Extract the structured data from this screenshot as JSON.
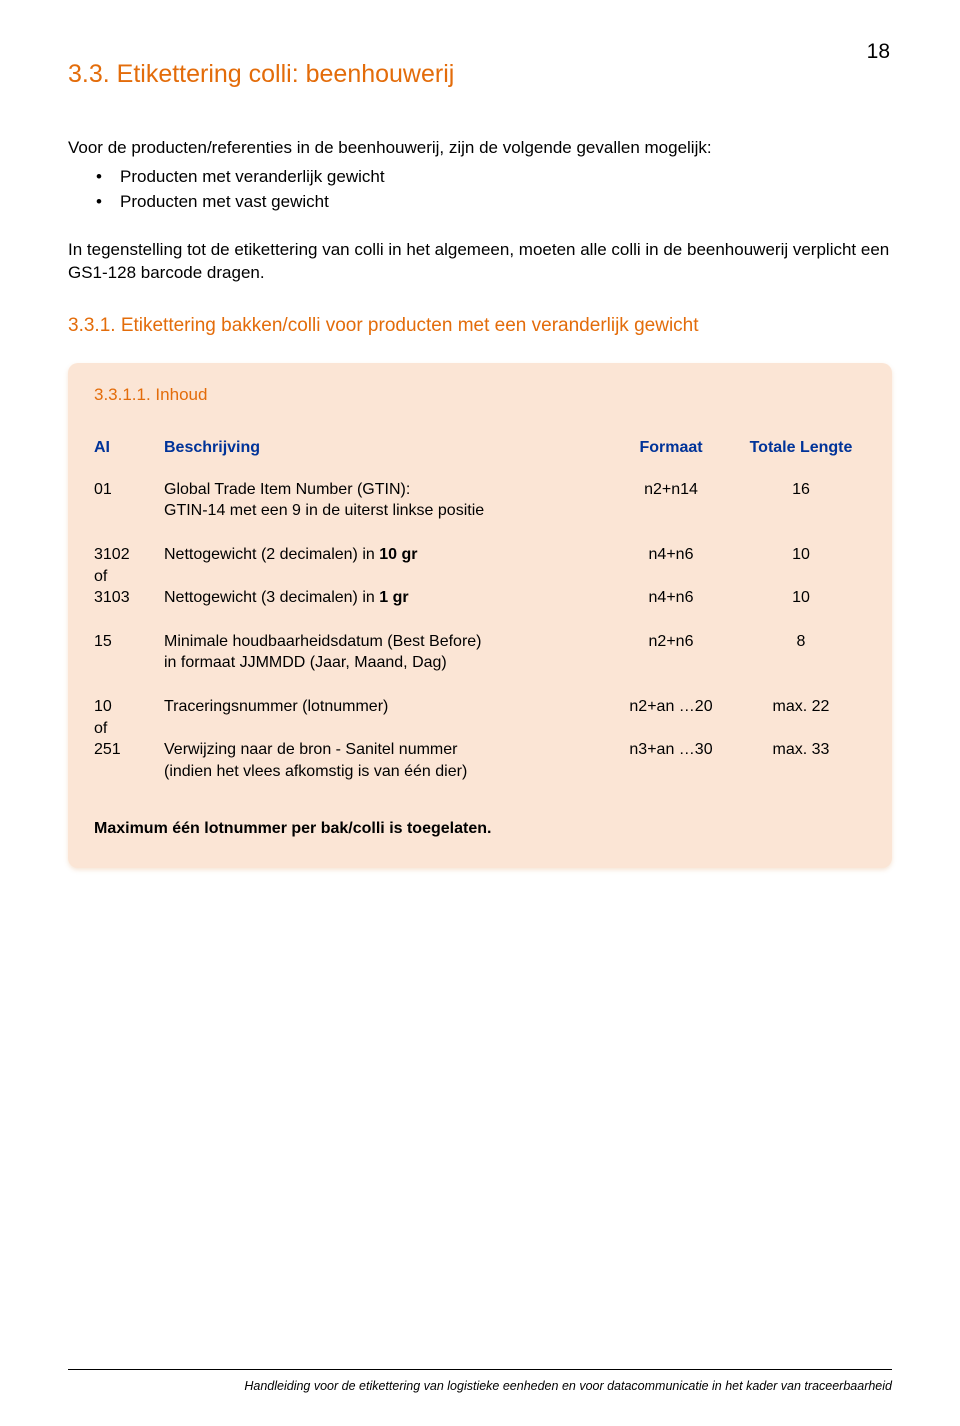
{
  "page_number": "18",
  "colors": {
    "heading": "#E36C0A",
    "panel_bg": "#FBE5D5",
    "table_header": "#003399",
    "text": "#000000",
    "page_bg": "#ffffff"
  },
  "h1": "3.3. Etikettering colli: beenhouwerij",
  "intro": "Voor de producten/referenties in de beenhouwerij, zijn de volgende gevallen mogelijk:",
  "bullets": [
    "Producten met veranderlijk gewicht",
    "Producten met vast gewicht"
  ],
  "intro2": "In tegenstelling tot de etikettering van colli in het algemeen, moeten alle colli in de beenhouwerij verplicht een GS1-128 barcode dragen.",
  "h2": "3.3.1. Etikettering bakken/colli voor producten met een veranderlijk gewicht",
  "h3": "3.3.1.1. Inhoud",
  "table": {
    "headers": {
      "ai": "AI",
      "desc": "Beschrijving",
      "fmt": "Formaat",
      "len": "Totale Lengte"
    },
    "rows": [
      {
        "ai": "01",
        "desc_html": "Global Trade Item Number (GTIN):<br>GTIN-14  met een 9 in de uiterst linkse positie",
        "fmt": "n2+n14",
        "len": "16"
      },
      {
        "spacer": true
      },
      {
        "ai": "3102",
        "desc_html": "Nettogewicht (2 decimalen) in <b>10 gr</b>",
        "fmt": "n4+n6",
        "len": "10"
      },
      {
        "ai": "of",
        "desc_html": "",
        "fmt": "",
        "len": ""
      },
      {
        "ai": "3103",
        "desc_html": "Nettogewicht (3 decimalen) in <b>1 gr</b>",
        "fmt": "n4+n6",
        "len": "10"
      },
      {
        "spacer": true
      },
      {
        "ai": "15",
        "desc_html": "Minimale houdbaarheidsdatum (Best Before)<br>in formaat JJMMDD (Jaar, Maand, Dag)",
        "fmt": "n2+n6",
        "len": "8"
      },
      {
        "spacer": true
      },
      {
        "ai": "10",
        "desc_html": "Traceringsnummer (lotnummer)",
        "fmt": "n2+an …20",
        "len": "max. 22"
      },
      {
        "ai": "of",
        "desc_html": "",
        "fmt": "",
        "len": ""
      },
      {
        "ai": "251",
        "desc_html": "Verwijzing naar de bron - Sanitel nummer<br>(indien het vlees afkomstig is van één dier)",
        "fmt": "n3+an …30",
        "len": "max. 33"
      }
    ]
  },
  "note": "Maximum één lotnummer per bak/colli is toegelaten.",
  "footer": "Handleiding voor de etikettering van logistieke eenheden en voor datacommunicatie in het kader van traceerbaarheid"
}
